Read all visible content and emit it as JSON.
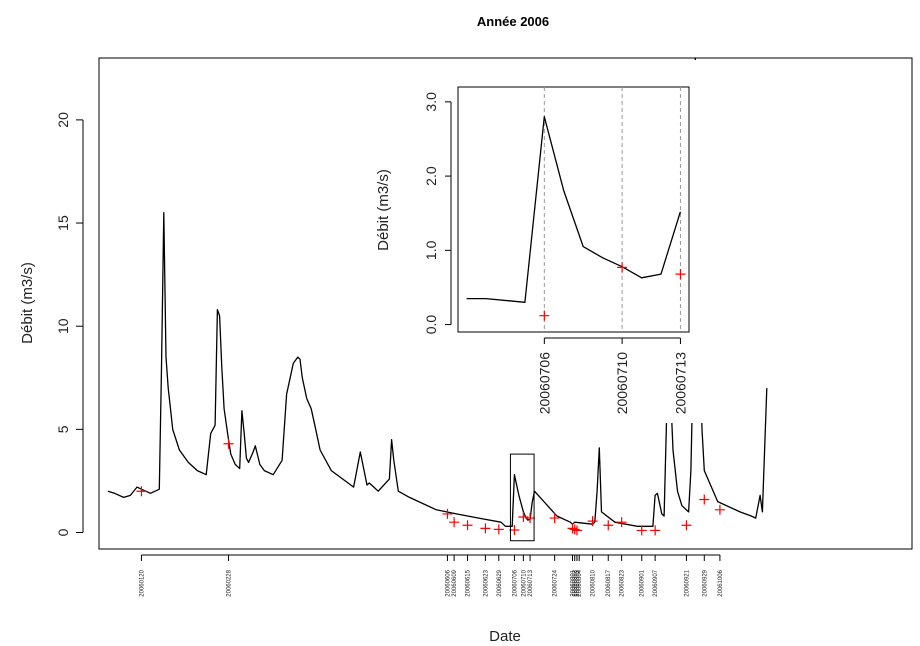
{
  "chart_data": [
    {
      "type": "line",
      "title": "Année 2006",
      "xlabel": "Date",
      "ylabel": "Débit (m3/s)",
      "x_range": [
        "20060101",
        "20061231"
      ],
      "ylim": [
        -0.8,
        23
      ],
      "yticks": [
        0,
        5,
        10,
        15,
        20
      ],
      "date_ticks": [
        "20060120",
        "20060228",
        "20060606",
        "20060609",
        "20060615",
        "20060623",
        "20060629",
        "20060706",
        "20060710",
        "20060713",
        "20060724",
        "20060801",
        "20060802",
        "20060803",
        "20060804",
        "20060810",
        "20060817",
        "20060823",
        "20060901",
        "20060907",
        "20060921",
        "20060929",
        "20061006"
      ],
      "series": [
        {
          "name": "",
          "color": "#000000",
          "x": [
            "20060105",
            "20060108",
            "20060112",
            "20060115",
            "20060118",
            "20060120",
            "20060124",
            "20060128",
            "20060129",
            "20060130",
            "20060131",
            "20060201",
            "20060202",
            "20060203",
            "20060206",
            "20060210",
            "20060214",
            "20060218",
            "20060220",
            "20060221",
            "20060222",
            "20060223",
            "20060224",
            "20060225",
            "20060226",
            "20060228",
            "20060301",
            "20060303",
            "20060305",
            "20060306",
            "20060307",
            "20060308",
            "20060309",
            "20060311",
            "20060312",
            "20060314",
            "20060316",
            "20060320",
            "20060324",
            "20060326",
            "20060329",
            "20060331",
            "20060401",
            "20060402",
            "20060404",
            "20060406",
            "20060408",
            "20060410",
            "20060415",
            "20060420",
            "20060425",
            "20060428",
            "20060501",
            "20060502",
            "20060503",
            "20060506",
            "20060511",
            "20060512",
            "20060513",
            "20060515",
            "20060520",
            "20060601",
            "20060610",
            "20060620",
            "20060630",
            "20060702",
            "20060705",
            "20060706",
            "20060708",
            "20060710",
            "20060711",
            "20060712",
            "20060713",
            "20060714",
            "20060715",
            "20060725",
            "20060731",
            "20060801",
            "20060802",
            "20060810",
            "20060811",
            "20060812",
            "20060813",
            "20060814",
            "20060820",
            "20060830",
            "20060906",
            "20060907",
            "20060908",
            "20060910",
            "20060911",
            "20060912",
            "20060913",
            "20060915",
            "20060917",
            "20060919",
            "20060922",
            "20060923",
            "20060924",
            "20060925",
            "20060926",
            "20060927",
            "20060928",
            "20060929",
            "20061005",
            "20061015",
            "20061020",
            "20061022",
            "20061024",
            "20061025",
            "20061027"
          ],
          "values": [
            2.0,
            1.9,
            1.7,
            1.8,
            2.2,
            2.1,
            1.9,
            2.1,
            8.0,
            15.5,
            8.5,
            7.0,
            6.0,
            5.0,
            4.0,
            3.4,
            3.0,
            2.8,
            4.8,
            5.0,
            5.2,
            10.8,
            10.5,
            8.0,
            6.0,
            4.5,
            3.8,
            3.3,
            3.1,
            5.9,
            4.8,
            3.6,
            3.4,
            3.9,
            4.2,
            3.3,
            3.0,
            2.8,
            3.5,
            6.7,
            8.2,
            8.5,
            8.4,
            7.5,
            6.5,
            6.0,
            5.0,
            4.0,
            3.0,
            2.6,
            2.2,
            3.9,
            2.3,
            2.4,
            2.3,
            2.0,
            2.6,
            4.5,
            3.5,
            2.0,
            1.7,
            1.1,
            0.9,
            0.7,
            0.5,
            0.3,
            0.3,
            2.8,
            1.8,
            1.0,
            0.75,
            0.6,
            0.65,
            1.5,
            2.0,
            0.8,
            0.5,
            0.4,
            0.5,
            0.4,
            0.5,
            2.0,
            4.1,
            1.0,
            0.5,
            0.3,
            0.3,
            1.8,
            1.9,
            0.9,
            0.8,
            5.0,
            9.2,
            4.0,
            2.0,
            1.3,
            1.0,
            3.0,
            8.0,
            23.0,
            18.0,
            9.0,
            5.0,
            3.0,
            1.5,
            1.0,
            0.8,
            0.7,
            1.8,
            1.0,
            7.0
          ]
        }
      ],
      "markers": {
        "symbol": "+",
        "color": "#ff0000",
        "x": [
          "20060120",
          "20060228",
          "20060606",
          "20060609",
          "20060615",
          "20060623",
          "20060629",
          "20060706",
          "20060710",
          "20060713",
          "20060724",
          "20060801",
          "20060802",
          "20060803",
          "20060810",
          "20060817",
          "20060823",
          "20060901",
          "20060907",
          "20060921",
          "20060929",
          "20061006"
        ],
        "values": [
          2.0,
          4.3,
          0.9,
          0.5,
          0.35,
          0.2,
          0.15,
          0.12,
          0.75,
          0.7,
          0.7,
          0.2,
          0.15,
          0.1,
          0.55,
          0.35,
          0.5,
          0.1,
          0.1,
          0.35,
          1.6,
          1.1
        ]
      },
      "highlight_box": {
        "x": [
          "20060706",
          "20060713"
        ],
        "y": [
          -0.4,
          3.8
        ]
      }
    },
    {
      "type": "line",
      "title": "",
      "xlabel": "",
      "ylabel": "Débit (m3/s)",
      "x_range": [
        "20060702",
        "20060713"
      ],
      "ylim": [
        -0.1,
        3.2
      ],
      "yticks_labels": [
        "0.0",
        "1.0",
        "2.0",
        "3.0"
      ],
      "yticks": [
        0,
        1,
        2,
        3
      ],
      "xticks": [
        "20060706",
        "20060710",
        "20060713"
      ],
      "series": [
        {
          "name": "",
          "color": "#000000",
          "x": [
            "20060702",
            "20060703",
            "20060705",
            "20060706",
            "20060707",
            "20060708",
            "20060709",
            "20060710",
            "20060711",
            "20060712",
            "20060713"
          ],
          "values": [
            0.35,
            0.35,
            0.3,
            2.8,
            1.8,
            1.05,
            0.9,
            0.78,
            0.63,
            0.68,
            1.52
          ]
        }
      ],
      "markers": {
        "symbol": "+",
        "color": "#ff0000",
        "x": [
          "20060706",
          "20060710",
          "20060713"
        ],
        "values": [
          0.12,
          0.77,
          0.68
        ]
      }
    }
  ]
}
